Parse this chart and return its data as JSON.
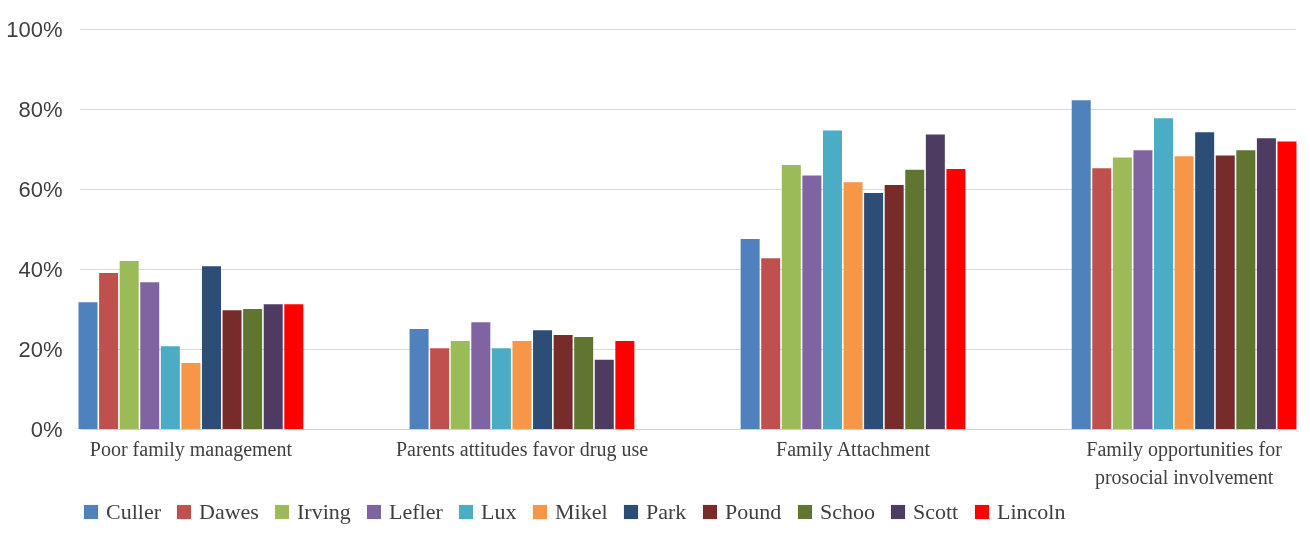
{
  "chart_data": {
    "type": "bar",
    "categories": [
      "Poor family management",
      "Parents attitudes favor drug use",
      "Family Attachment",
      "Family opportunities for prosocial involvement"
    ],
    "ylim": [
      0,
      100
    ],
    "yticks": [
      {
        "value": 0,
        "label": "0%"
      },
      {
        "value": 20,
        "label": "20%"
      },
      {
        "value": 40,
        "label": "40%"
      },
      {
        "value": 60,
        "label": "60%"
      },
      {
        "value": 80,
        "label": "80%"
      },
      {
        "value": 100,
        "label": "100%"
      }
    ],
    "grid": "y",
    "legend": "bottom",
    "series": [
      {
        "name": "Culler",
        "color": "#4f81bd",
        "values": [
          31.7,
          25,
          47.5,
          82.2
        ]
      },
      {
        "name": "Dawes",
        "color": "#c0504d",
        "values": [
          39,
          20.2,
          42.7,
          65.2
        ]
      },
      {
        "name": "Irving",
        "color": "#9bbb59",
        "values": [
          42,
          22,
          66,
          67.9
        ]
      },
      {
        "name": "Lefler",
        "color": "#8064a2",
        "values": [
          36.7,
          26.7,
          63.4,
          69.7
        ]
      },
      {
        "name": "Lux",
        "color": "#4bacc6",
        "values": [
          20.7,
          20.2,
          74.6,
          77.7
        ]
      },
      {
        "name": "Mikel",
        "color": "#f79646",
        "values": [
          16.5,
          22,
          61.7,
          68.2
        ]
      },
      {
        "name": "Park",
        "color": "#2c4d75",
        "values": [
          40.7,
          24.7,
          59,
          74.2
        ]
      },
      {
        "name": "Pound",
        "color": "#772c2a",
        "values": [
          29.7,
          23.5,
          61,
          68.4
        ]
      },
      {
        "name": "Schoo",
        "color": "#5f7530",
        "values": [
          30,
          23,
          64.8,
          69.7
        ]
      },
      {
        "name": "Scott",
        "color": "#4d3b62",
        "values": [
          31.2,
          17.3,
          73.6,
          72.7
        ]
      },
      {
        "name": "Lincoln",
        "color": "#ff0000",
        "values": [
          31.2,
          22,
          65,
          71.9
        ]
      }
    ]
  }
}
